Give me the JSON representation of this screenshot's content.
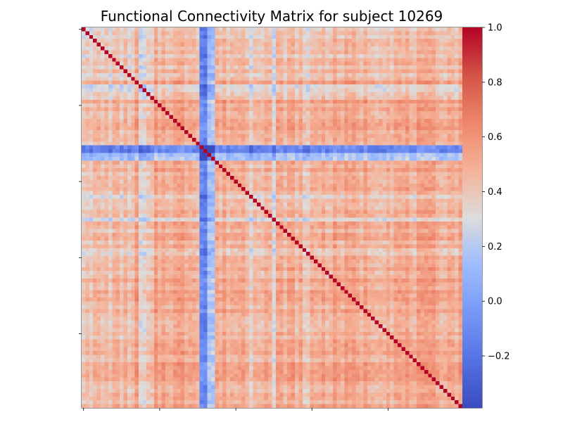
{
  "chart_data": {
    "type": "heatmap",
    "title": "Functional Connectivity Matrix for subject 10269",
    "xlabel": "",
    "ylabel": "",
    "n_regions": 100,
    "colormap": "coolwarm",
    "vmin": -0.39,
    "vmax": 1.0,
    "diagonal_value": 1.0,
    "colorbar_ticks": [
      -0.2,
      0.0,
      0.2,
      0.4,
      0.6,
      0.8,
      1.0
    ],
    "colorbar_tick_labels": [
      "−0.2",
      "0.0",
      "0.2",
      "0.4",
      "0.6",
      "0.8",
      "1.0"
    ],
    "x_tick_labels": [
      "",
      "",
      "",
      "",
      ""
    ],
    "y_tick_labels": [
      "",
      "",
      "",
      "",
      ""
    ],
    "base_correlation": 0.5,
    "region_offsets": {
      "1": 0.0,
      "2": -0.05,
      "3": 0.02,
      "15": -0.2,
      "16": -0.18,
      "17": -0.12,
      "18": -0.1,
      "31": -0.35,
      "32": -0.38,
      "33": -0.15,
      "34": -0.12,
      "44": -0.15,
      "50": -0.18,
      "58": -0.1,
      "59": -0.1
    },
    "strong_negative_regions": [
      31,
      32
    ],
    "weak_regions": [
      1,
      2,
      3,
      15,
      16,
      17,
      18,
      33,
      34,
      44,
      50,
      58,
      59
    ],
    "block_structure": [
      {
        "start": 0,
        "end": 14,
        "mean": 0.38
      },
      {
        "start": 14,
        "end": 31,
        "mean": 0.55
      },
      {
        "start": 31,
        "end": 35,
        "mean": 0.1
      },
      {
        "start": 35,
        "end": 60,
        "mean": 0.5
      },
      {
        "start": 60,
        "end": 100,
        "mean": 0.52
      }
    ]
  },
  "colors": {
    "background": "#ffffff",
    "axis": "#000000",
    "text": "#000000"
  }
}
